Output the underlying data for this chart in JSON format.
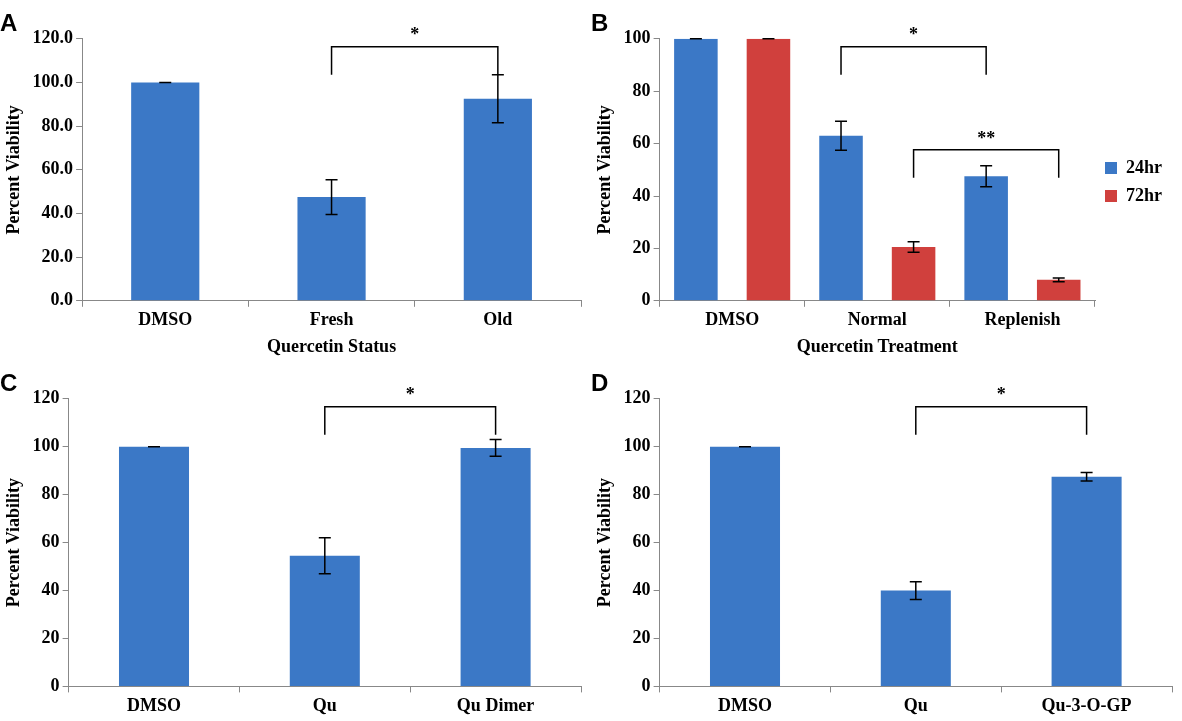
{
  "chart_data": [
    {
      "type": "bar",
      "title": "A",
      "xlabel": "Quercetin Status",
      "ylabel": "Percent Viability",
      "categories": [
        "DMSO",
        "Fresh",
        "Old"
      ],
      "series": [
        {
          "color": "#3b78c6",
          "values": [
            100,
            47.5,
            92.5
          ],
          "errors": [
            0,
            8,
            11
          ]
        }
      ],
      "ylim": [
        0,
        120
      ],
      "yticks": [
        {
          "value": 0,
          "label": "0.0"
        },
        {
          "value": 20,
          "label": "20.0"
        },
        {
          "value": 40,
          "label": "40.0"
        },
        {
          "value": 60,
          "label": "60.0"
        },
        {
          "value": 80,
          "label": "80.0"
        },
        {
          "value": 100,
          "label": "100.0"
        },
        {
          "value": 120,
          "label": "120.0"
        }
      ],
      "grid": false,
      "legend": false,
      "annotations": [
        "*"
      ]
    },
    {
      "type": "bar",
      "title": "B",
      "xlabel": "Quercetin Treatment",
      "ylabel": "Percent Viability",
      "categories": [
        "DMSO",
        "Normal",
        "Replenish"
      ],
      "series": [
        {
          "name": "24hr",
          "color": "#3b78c6",
          "values": [
            100,
            63,
            47.5
          ],
          "errors": [
            0,
            5.5,
            4
          ]
        },
        {
          "name": "72hr",
          "color": "#d0403d",
          "values": [
            100,
            20.5,
            8
          ],
          "errors": [
            0,
            2,
            0.7
          ]
        }
      ],
      "ylim": [
        0,
        100
      ],
      "yticks": [
        0,
        20,
        40,
        60,
        80,
        100
      ],
      "grid": false,
      "legend": "right",
      "annotations": [
        "*",
        "**"
      ]
    },
    {
      "type": "bar",
      "title": "C",
      "ylabel": "Percent Viability",
      "categories": [
        "DMSO",
        "Qu",
        "Qu Dimer"
      ],
      "series": [
        {
          "color": "#3b78c6",
          "values": [
            100,
            54.5,
            99.5
          ],
          "errors": [
            0,
            7.5,
            3.5
          ]
        }
      ],
      "ylim": [
        0,
        120
      ],
      "yticks": [
        0,
        20,
        40,
        60,
        80,
        100,
        120
      ],
      "grid": false,
      "legend": false,
      "annotations": [
        "*"
      ]
    },
    {
      "type": "bar",
      "title": "D",
      "ylabel": "Percent Viability",
      "categories": [
        "DMSO",
        "Qu",
        "Qu-3-O-GP"
      ],
      "series": [
        {
          "color": "#3b78c6",
          "values": [
            100,
            40,
            87.5
          ],
          "errors": [
            0,
            3.7,
            1.8
          ]
        }
      ],
      "ylim": [
        0,
        120
      ],
      "yticks": [
        0,
        20,
        40,
        60,
        80,
        100,
        120
      ],
      "grid": false,
      "legend": false,
      "annotations": [
        "*"
      ]
    }
  ]
}
